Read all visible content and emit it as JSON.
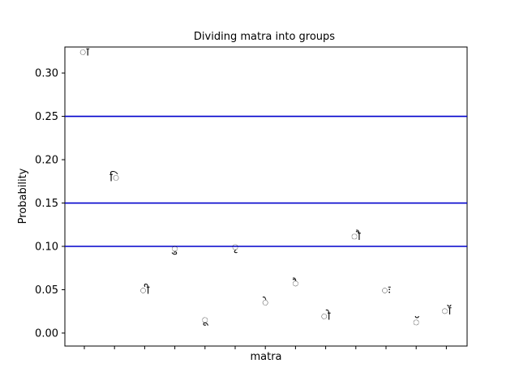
{
  "chart_data": {
    "type": "scatter",
    "title": "Dividing matra into groups",
    "xlabel": "matra",
    "ylabel": "Probability",
    "ylim": [
      -0.015,
      0.33
    ],
    "yticks": [
      0.0,
      0.05,
      0.1,
      0.15,
      0.2,
      0.25,
      0.3
    ],
    "ytick_labels": [
      "0.00",
      "0.05",
      "0.10",
      "0.15",
      "0.20",
      "0.25",
      "0.30"
    ],
    "grid": false,
    "points": [
      {
        "label": "ा",
        "y": 0.325
      },
      {
        "label": "ि",
        "y": 0.18
      },
      {
        "label": "ी",
        "y": 0.05
      },
      {
        "label": "ु",
        "y": 0.098
      },
      {
        "label": "ू",
        "y": 0.016
      },
      {
        "label": "ृ",
        "y": 0.1
      },
      {
        "label": "े",
        "y": 0.036
      },
      {
        "label": "ै",
        "y": 0.058
      },
      {
        "label": "ो",
        "y": 0.02
      },
      {
        "label": "ौ",
        "y": 0.112
      },
      {
        "label": "ः",
        "y": 0.05
      },
      {
        "label": "ॅ",
        "y": 0.013
      },
      {
        "label": "ॉ",
        "y": 0.026
      }
    ],
    "hlines": [
      {
        "y": 0.1,
        "color": "#0000cc"
      },
      {
        "y": 0.15,
        "color": "#0000cc"
      },
      {
        "y": 0.25,
        "color": "#0000cc"
      }
    ]
  }
}
